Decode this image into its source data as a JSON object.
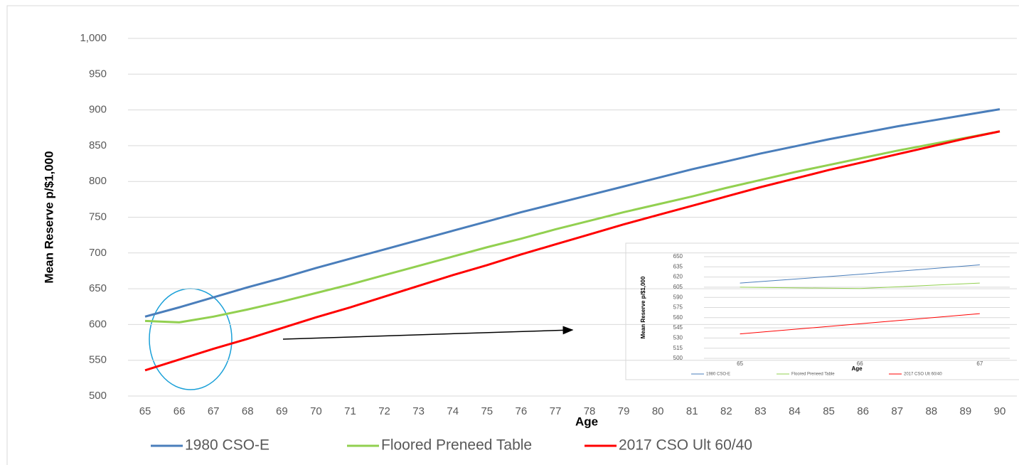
{
  "chart_data": [
    {
      "type": "line",
      "y_label": "Mean Reserve p/$1,000",
      "x_label": "Age",
      "x": [
        65,
        66,
        67,
        68,
        69,
        70,
        71,
        72,
        73,
        74,
        75,
        76,
        77,
        78,
        79,
        80,
        81,
        82,
        83,
        84,
        85,
        86,
        87,
        88,
        89,
        90
      ],
      "xlim": [
        64.5,
        90.5
      ],
      "xticks": [
        65,
        66,
        67,
        68,
        69,
        70,
        71,
        72,
        73,
        74,
        75,
        76,
        77,
        78,
        79,
        80,
        81,
        82,
        83,
        84,
        85,
        86,
        87,
        88,
        89,
        90
      ],
      "ylim": [
        500,
        1000
      ],
      "yticks": [
        500,
        550,
        600,
        650,
        700,
        750,
        800,
        850,
        900,
        950,
        {
          "value": 1000,
          "label": "1,000"
        }
      ],
      "grid": true,
      "legend": "bottom",
      "series": [
        {
          "name": "1980 CSO-E",
          "color": "#4a7ebb",
          "values": [
            611,
            624,
            638,
            652,
            665,
            679,
            692,
            705,
            718,
            731,
            744,
            757,
            769,
            781,
            793,
            805,
            817,
            828,
            839,
            849,
            859,
            868,
            877,
            885,
            893,
            901
          ]
        },
        {
          "name": "Floored Preneed Table",
          "color": "#92d050",
          "values": [
            605,
            603,
            611,
            621,
            632,
            644,
            656,
            669,
            682,
            695,
            708,
            720,
            733,
            745,
            757,
            768,
            779,
            791,
            802,
            813,
            823,
            833,
            843,
            852,
            861,
            870
          ]
        },
        {
          "name": "2017 CSO Ult 60/40",
          "color": "#ff0000",
          "values": [
            536,
            551,
            566,
            580,
            595,
            610,
            624,
            639,
            654,
            669,
            683,
            698,
            712,
            726,
            740,
            753,
            766,
            779,
            792,
            804,
            816,
            827,
            838,
            849,
            860,
            870
          ]
        }
      ]
    },
    {
      "type": "line",
      "y_label": "Mean Reserve p/$1,000",
      "x_label": "Age",
      "x": [
        65,
        66,
        67
      ],
      "xlim": [
        64.7,
        67.25
      ],
      "xticks": [
        65,
        66,
        67
      ],
      "ylim": [
        500,
        650
      ],
      "yticks": [
        500,
        515,
        530,
        545,
        560,
        575,
        590,
        605,
        620,
        635,
        650
      ],
      "grid": true,
      "legend": "bottom",
      "series": [
        {
          "name": "1980 CSO-E",
          "color": "#4a7ebb",
          "values": [
            611,
            624,
            638
          ]
        },
        {
          "name": "Floored Preneed Table",
          "color": "#92d050",
          "values": [
            605,
            603,
            611
          ]
        },
        {
          "name": "2017 CSO Ult 60/40",
          "color": "#ff0000",
          "values": [
            536,
            551,
            566
          ]
        }
      ]
    }
  ]
}
